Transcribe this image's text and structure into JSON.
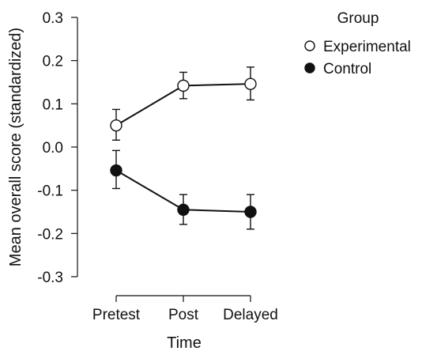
{
  "chart_data": {
    "type": "line",
    "xlabel": "Time",
    "ylabel": "Mean overall score (standardized)",
    "categories": [
      "Pretest",
      "Post",
      "Delayed"
    ],
    "ylim": [
      -0.3,
      0.3
    ],
    "yticks": [
      -0.3,
      -0.2,
      -0.1,
      0.0,
      0.1,
      0.2,
      0.3
    ],
    "ytick_labels": [
      "-0.3",
      "-0.2",
      "-0.1",
      "0.0",
      "0.1",
      "0.2",
      "0.3"
    ],
    "grid": false,
    "legend_title": "Group",
    "legend_position": "top-right",
    "series": [
      {
        "name": "Experimental",
        "marker": "open-circle",
        "values": [
          0.05,
          0.142,
          0.146
        ],
        "error_low": [
          0.016,
          0.112,
          0.109
        ],
        "error_high": [
          0.087,
          0.173,
          0.185
        ]
      },
      {
        "name": "Control",
        "marker": "filled-circle",
        "values": [
          -0.054,
          -0.145,
          -0.15
        ],
        "error_low": [
          -0.096,
          -0.179,
          -0.19
        ],
        "error_high": [
          -0.008,
          -0.11,
          -0.11
        ]
      }
    ],
    "colors": {
      "line": "#111111",
      "open_fill": "#ffffff",
      "filled_fill": "#111111"
    }
  }
}
